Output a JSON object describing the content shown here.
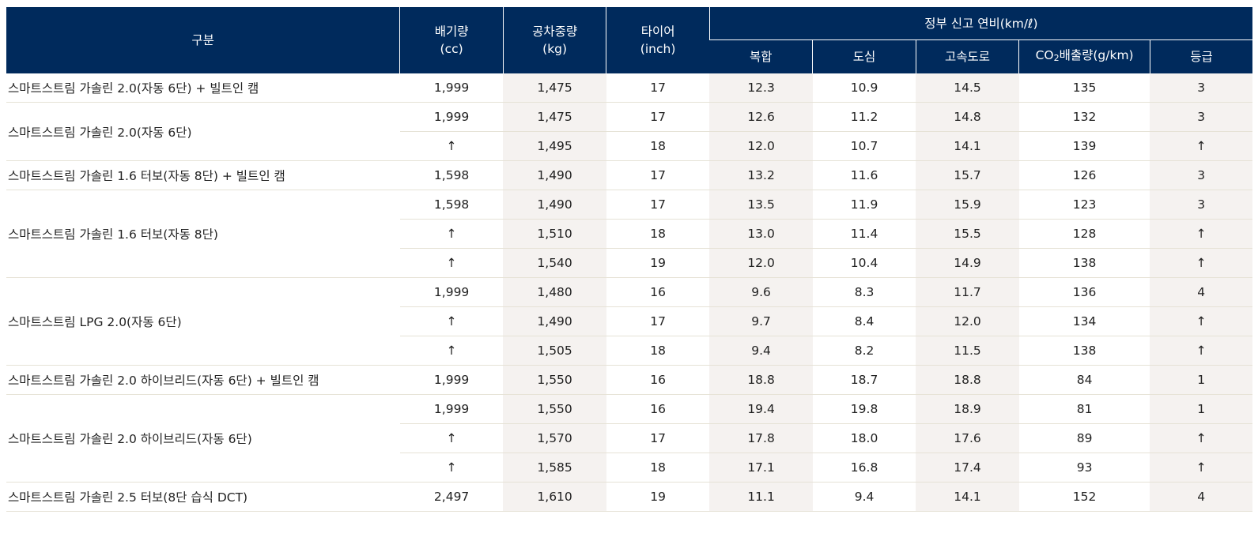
{
  "header": {
    "category": "구분",
    "displacement": [
      "배기량",
      "(cc)"
    ],
    "curb_weight": [
      "공차중량",
      "(kg)"
    ],
    "tire": [
      "타이어",
      "(inch)"
    ],
    "fuel_group": "정부 신고 연비(km/ℓ)",
    "combined": "복합",
    "city": "도심",
    "highway": "고속도로",
    "co2_prefix": "CO",
    "co2_sub": "2",
    "co2_suffix": "배출량(g/km)",
    "grade": "등급"
  },
  "rows": [
    {
      "label": "스마트스트림 가솔린 2.0(자동 6단) + 빌트인 캠",
      "span": 1,
      "cells": [
        "1,999",
        "1,475",
        "17",
        "12.3",
        "10.9",
        "14.5",
        "135",
        "3"
      ]
    },
    {
      "label": "스마트스트림 가솔린 2.0(자동 6단)",
      "span": 2,
      "cells": [
        "1,999",
        "1,475",
        "17",
        "12.6",
        "11.2",
        "14.8",
        "132",
        "3"
      ]
    },
    {
      "label": "",
      "span": 0,
      "cells": [
        "↑",
        "1,495",
        "18",
        "12.0",
        "10.7",
        "14.1",
        "139",
        "↑"
      ]
    },
    {
      "label": "스마트스트림 가솔린 1.6 터보(자동 8단) + 빌트인 캠",
      "span": 1,
      "cells": [
        "1,598",
        "1,490",
        "17",
        "13.2",
        "11.6",
        "15.7",
        "126",
        "3"
      ]
    },
    {
      "label": "스마트스트림 가솔린 1.6 터보(자동 8단)",
      "span": 3,
      "cells": [
        "1,598",
        "1,490",
        "17",
        "13.5",
        "11.9",
        "15.9",
        "123",
        "3"
      ]
    },
    {
      "label": "",
      "span": 0,
      "cells": [
        "↑",
        "1,510",
        "18",
        "13.0",
        "11.4",
        "15.5",
        "128",
        "↑"
      ]
    },
    {
      "label": "",
      "span": 0,
      "cells": [
        "↑",
        "1,540",
        "19",
        "12.0",
        "10.4",
        "14.9",
        "138",
        "↑"
      ]
    },
    {
      "label": "스마트스트림 LPG 2.0(자동 6단)",
      "span": 3,
      "cells": [
        "1,999",
        "1,480",
        "16",
        "9.6",
        "8.3",
        "11.7",
        "136",
        "4"
      ]
    },
    {
      "label": "",
      "span": 0,
      "cells": [
        "↑",
        "1,490",
        "17",
        "9.7",
        "8.4",
        "12.0",
        "134",
        "↑"
      ]
    },
    {
      "label": "",
      "span": 0,
      "cells": [
        "↑",
        "1,505",
        "18",
        "9.4",
        "8.2",
        "11.5",
        "138",
        "↑"
      ]
    },
    {
      "label": "스마트스트림 가솔린 2.0 하이브리드(자동 6단) + 빌트인 캠",
      "span": 1,
      "cells": [
        "1,999",
        "1,550",
        "16",
        "18.8",
        "18.7",
        "18.8",
        "84",
        "1"
      ]
    },
    {
      "label": "스마트스트림 가솔린 2.0 하이브리드(자동 6단)",
      "span": 3,
      "cells": [
        "1,999",
        "1,550",
        "16",
        "19.4",
        "19.8",
        "18.9",
        "81",
        "1"
      ]
    },
    {
      "label": "",
      "span": 0,
      "cells": [
        "↑",
        "1,570",
        "17",
        "17.8",
        "18.0",
        "17.6",
        "89",
        "↑"
      ]
    },
    {
      "label": "",
      "span": 0,
      "cells": [
        "↑",
        "1,585",
        "18",
        "17.1",
        "16.8",
        "17.4",
        "93",
        "↑"
      ]
    },
    {
      "label": "스마트스트림 가솔린 2.5 터보(8단 습식 DCT)",
      "span": 1,
      "cells": [
        "2,497",
        "1,610",
        "19",
        "11.1",
        "9.4",
        "14.1",
        "152",
        "4"
      ]
    }
  ]
}
